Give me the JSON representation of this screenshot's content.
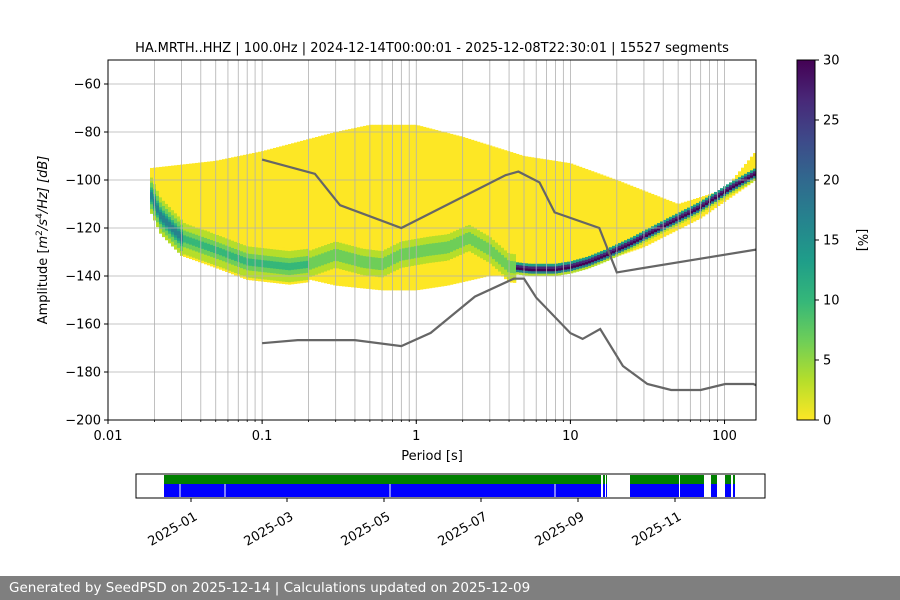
{
  "chart_data": {
    "type": "heatmap",
    "title": "HA.MRTH..HHZ | 100.0Hz | 2024-12-14T00:00:01 - 2025-12-08T22:30:01 | 15527 segments",
    "xlabel": "Period [s]",
    "ylabel_parts": {
      "a": "Amplitude [",
      "m": "m",
      "e2": "2",
      "s": "/s",
      "e4": "4",
      "hz": "/Hz] [dB]"
    },
    "xscale": "log",
    "xlim": [
      0.01,
      160
    ],
    "ylim": [
      -200,
      -50
    ],
    "x_ticks": [
      {
        "value": 0.01,
        "label": "0.01"
      },
      {
        "value": 0.1,
        "label": "0.1"
      },
      {
        "value": 1,
        "label": "1"
      },
      {
        "value": 10,
        "label": "10"
      },
      {
        "value": 100,
        "label": "100"
      }
    ],
    "y_ticks": [
      {
        "value": -60,
        "label": "−60"
      },
      {
        "value": -80,
        "label": "−80"
      },
      {
        "value": -100,
        "label": "−100"
      },
      {
        "value": -120,
        "label": "−120"
      },
      {
        "value": -140,
        "label": "−140"
      },
      {
        "value": -160,
        "label": "−160"
      },
      {
        "value": -180,
        "label": "−180"
      },
      {
        "value": -200,
        "label": "−200"
      }
    ],
    "grid": true,
    "colorbar": {
      "label": "[%]",
      "range": [
        0,
        30
      ],
      "ticks": [
        {
          "value": 0,
          "label": "0"
        },
        {
          "value": 5,
          "label": "5"
        },
        {
          "value": 10,
          "label": "10"
        },
        {
          "value": 15,
          "label": "15"
        },
        {
          "value": 20,
          "label": "20"
        },
        {
          "value": 25,
          "label": "25"
        },
        {
          "value": 30,
          "label": "30"
        }
      ],
      "colors": [
        "#fde725",
        "#b5de2b",
        "#6ece58",
        "#35b779",
        "#1f9e89",
        "#26828e",
        "#31688e",
        "#3e4989",
        "#482878",
        "#440154"
      ]
    },
    "psd_mode_dB": [
      [
        0.019,
        -106
      ],
      [
        0.022,
        -115
      ],
      [
        0.03,
        -124
      ],
      [
        0.05,
        -129
      ],
      [
        0.08,
        -134
      ],
      [
        0.15,
        -136
      ],
      [
        0.2,
        -135
      ],
      [
        0.3,
        -131
      ],
      [
        0.45,
        -134
      ],
      [
        0.6,
        -135
      ],
      [
        0.8,
        -131
      ],
      [
        1.2,
        -129
      ],
      [
        1.6,
        -128
      ],
      [
        2.2,
        -124
      ],
      [
        3.0,
        -129
      ],
      [
        4.0,
        -136
      ],
      [
        5.5,
        -137
      ],
      [
        8.0,
        -137
      ],
      [
        10,
        -136
      ],
      [
        13,
        -134
      ],
      [
        17,
        -131
      ],
      [
        25,
        -126
      ],
      [
        40,
        -119
      ],
      [
        70,
        -111
      ],
      [
        110,
        -103
      ],
      [
        160,
        -97
      ]
    ],
    "psd_upper_dB": [
      [
        0.019,
        -95
      ],
      [
        0.05,
        -92
      ],
      [
        0.1,
        -88
      ],
      [
        0.3,
        -80
      ],
      [
        0.5,
        -77
      ],
      [
        1,
        -77
      ],
      [
        2,
        -82
      ],
      [
        5,
        -90
      ],
      [
        10,
        -93
      ],
      [
        20,
        -100
      ],
      [
        50,
        -110
      ],
      [
        100,
        -104
      ],
      [
        160,
        -88
      ]
    ],
    "psd_lower_dB": [
      [
        0.019,
        -111
      ],
      [
        0.03,
        -125
      ],
      [
        0.05,
        -130
      ],
      [
        0.1,
        -137
      ],
      [
        0.3,
        -144
      ],
      [
        0.6,
        -146
      ],
      [
        1,
        -146
      ],
      [
        1.6,
        -144
      ],
      [
        3,
        -140
      ],
      [
        6,
        -139
      ],
      [
        10,
        -138
      ],
      [
        16,
        -134
      ],
      [
        30,
        -128
      ],
      [
        70,
        -116
      ],
      [
        160,
        -100
      ]
    ],
    "nhnm": {
      "name": "NHNM",
      "x": [
        0.1,
        0.22,
        0.32,
        0.8,
        3.8,
        4.6,
        6.3,
        7.9,
        15.4,
        20,
        160
      ],
      "y": [
        -91.5,
        -97.4,
        -110.5,
        -120,
        -98,
        -96.5,
        -101,
        -113.5,
        -120,
        -138.5,
        -129
      ]
    },
    "nlnm": {
      "name": "NLNM",
      "x": [
        0.1,
        0.17,
        0.4,
        0.8,
        1.24,
        2.4,
        4.3,
        5.0,
        6.0,
        10.0,
        12.0,
        15.6,
        21.9,
        31.6,
        45,
        70,
        101,
        154,
        160
      ],
      "y": [
        -168,
        -166.7,
        -166.7,
        -169.2,
        -163.7,
        -148.6,
        -141.1,
        -141.1,
        -149,
        -163.8,
        -166.2,
        -162.1,
        -177.5,
        -185,
        -187.5,
        -187.5,
        -185,
        -185,
        -185.5
      ]
    },
    "gridline_periods": [
      0.02,
      0.03,
      0.04,
      0.05,
      0.06,
      0.07,
      0.08,
      0.09,
      0.1,
      0.2,
      0.3,
      0.4,
      0.5,
      0.6,
      0.7,
      0.8,
      0.9,
      1,
      2,
      3,
      4,
      5,
      6,
      7,
      8,
      9,
      10,
      20,
      30,
      40,
      50,
      60,
      70,
      80,
      90,
      100
    ],
    "availability": {
      "date_ticks": [
        "2025-01",
        "2025-03",
        "2025-05",
        "2025-07",
        "2025-09",
        "2025-11"
      ],
      "data_color": "#0000ff",
      "gap_free_color": "#008000"
    }
  },
  "footer_text": "Generated by SeedPSD on 2025-12-14 | Calculations updated on 2025-12-09"
}
